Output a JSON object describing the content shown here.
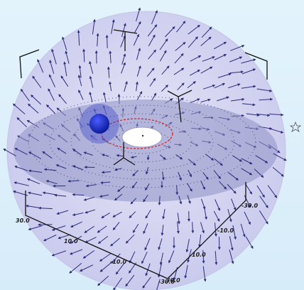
{
  "axes": {
    "front_left_ticks": [
      "30.0",
      "10.0",
      "-10.0",
      "-30.0"
    ],
    "front_right_ticks": [
      "-30.0",
      "-10.0",
      "10.0",
      "30.0"
    ]
  }
}
